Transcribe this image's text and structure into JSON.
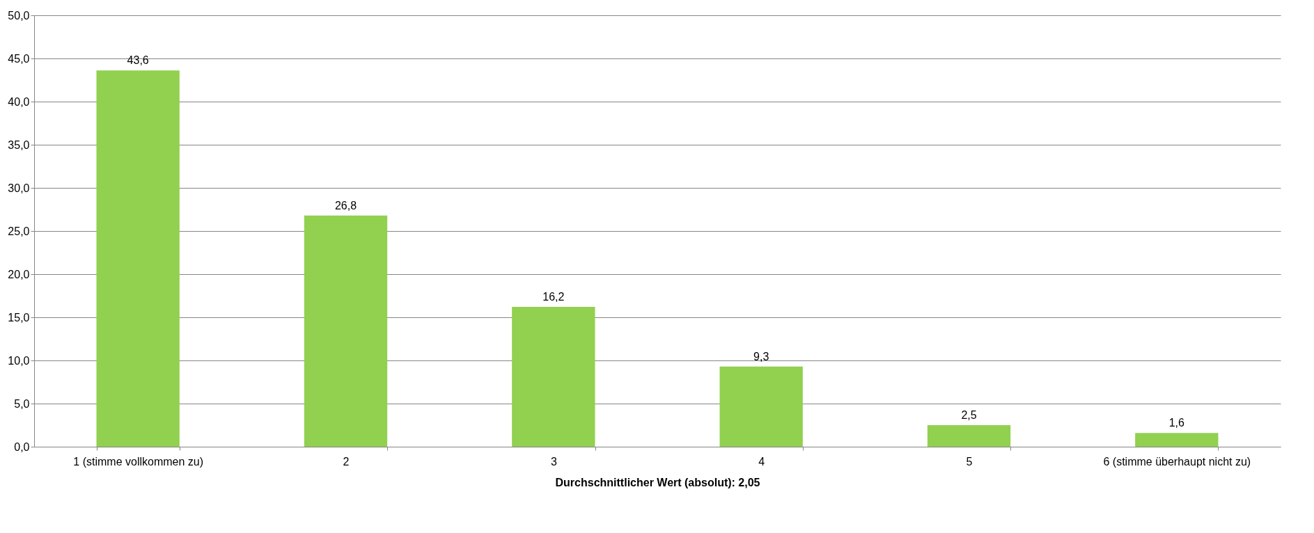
{
  "chart_data": {
    "type": "bar",
    "xlabel": "Durchschnittlicher Wert (absolut): 2,05",
    "categories": [
      "1 (stimme vollkommen zu)",
      "2",
      "3",
      "4",
      "5",
      "6 (stimme überhaupt nicht zu)"
    ],
    "values": [
      43.6,
      26.8,
      16.2,
      9.3,
      2.5,
      1.6
    ],
    "value_labels": [
      "43,6",
      "26,8",
      "16,2",
      "9,3",
      "2,5",
      "1,6"
    ],
    "color": "#92d050",
    "ylim": [
      0,
      50
    ],
    "yticks": [
      {
        "value": 0,
        "label": "0,0"
      },
      {
        "value": 5,
        "label": "5,0"
      },
      {
        "value": 10,
        "label": "10,0"
      },
      {
        "value": 15,
        "label": "15,0"
      },
      {
        "value": 20,
        "label": "20,0"
      },
      {
        "value": 25,
        "label": "25,0"
      },
      {
        "value": 30,
        "label": "30,0"
      },
      {
        "value": 35,
        "label": "35,0"
      },
      {
        "value": 40,
        "label": "40,0"
      },
      {
        "value": 45,
        "label": "45,0"
      },
      {
        "value": 50,
        "label": "50,0"
      }
    ],
    "grid": "y"
  }
}
